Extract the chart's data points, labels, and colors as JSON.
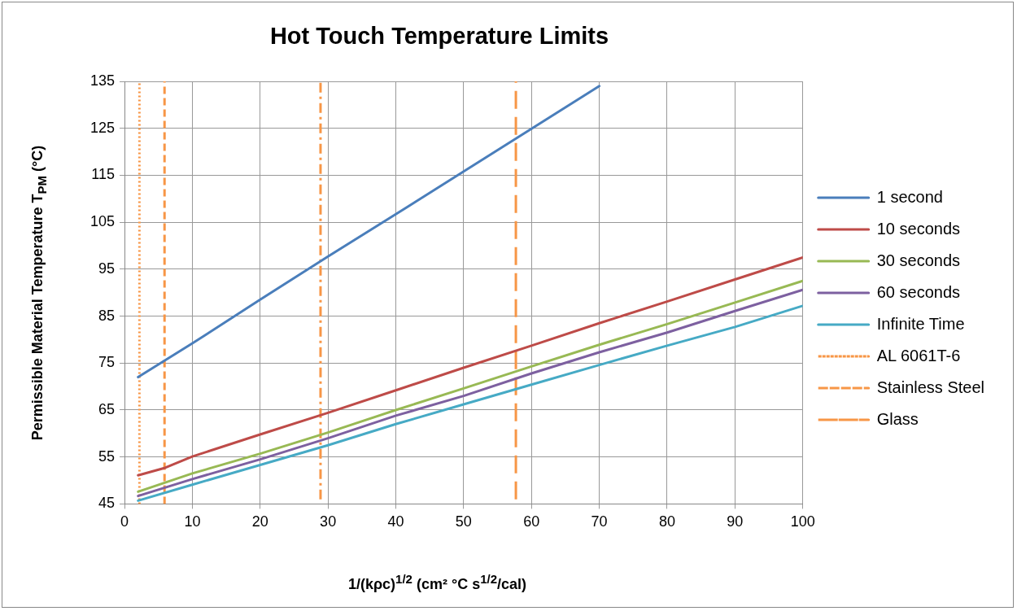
{
  "chart_data": {
    "type": "line",
    "title": "Hot Touch Temperature Limits",
    "xlabel": "1/(kρc)$^{1/2}$ (cm² °C s$^{1/2}$/cal)",
    "ylabel": "Permissible Material Temperature T$_{PM}$ (°C)",
    "xlim": [
      0,
      100
    ],
    "xticks": [
      0,
      10,
      20,
      30,
      40,
      50,
      60,
      70,
      80,
      90,
      100
    ],
    "ylim": [
      45,
      135
    ],
    "yticks": [
      45,
      55,
      65,
      75,
      85,
      95,
      105,
      115,
      125,
      135
    ],
    "grid": true,
    "legend": "right",
    "marker": "none",
    "line_style": "solid",
    "series": [
      {
        "name": "1 second",
        "color": "#4a7ebb",
        "x": [
          2,
          10,
          20,
          30,
          40,
          50,
          60,
          70
        ],
        "values": [
          72.0,
          79.2,
          88.5,
          97.7,
          106.7,
          115.8,
          124.9,
          134
        ]
      },
      {
        "name": "10 seconds",
        "color": "#be4b48",
        "x": [
          2,
          6,
          10,
          20,
          30,
          40,
          50,
          60,
          70,
          80,
          90,
          100
        ],
        "values": [
          51.1,
          52.7,
          55.1,
          59.8,
          64.4,
          69.2,
          74.0,
          78.7,
          83.5,
          88.1,
          92.8,
          97.5
        ]
      },
      {
        "name": "30 seconds",
        "color": "#98b954",
        "x": [
          2,
          10,
          20,
          30,
          40,
          50,
          60,
          70,
          80,
          90,
          100
        ],
        "values": [
          47.6,
          51.5,
          55.7,
          60.2,
          65.0,
          69.6,
          74.3,
          78.9,
          83.3,
          87.9,
          92.5
        ]
      },
      {
        "name": "60 seconds",
        "color": "#7d60a0",
        "x": [
          2,
          10,
          20,
          30,
          40,
          50,
          60,
          70,
          80,
          90,
          100
        ],
        "values": [
          46.7,
          50.3,
          54.5,
          59.0,
          63.8,
          68.0,
          72.8,
          77.3,
          81.5,
          86.1,
          90.6
        ]
      },
      {
        "name": "Infinite Time",
        "color": "#46aac5",
        "x": [
          2,
          10,
          20,
          30,
          40,
          50,
          60,
          70,
          80,
          90,
          100
        ],
        "values": [
          45.7,
          49.1,
          53.3,
          57.5,
          62.0,
          66.2,
          70.4,
          74.6,
          78.7,
          82.7,
          87.2
        ]
      },
      {
        "name": "AL 6061T-6",
        "color": "#f79646",
        "line_style": "dotted",
        "x": [
          2.2,
          2.2
        ],
        "values": [
          45,
          135
        ]
      },
      {
        "name": "Stainless Steel",
        "color": "#f79646",
        "line_style": "dashed",
        "x": [
          5.9,
          5.9
        ],
        "values": [
          45,
          135
        ]
      },
      {
        "name": "Glass",
        "color": "#f79646",
        "line_style": "dashdot",
        "x": [
          28.9,
          28.9
        ],
        "values": [
          46,
          135
        ]
      },
      {
        "color": "#f79646",
        "line_style": "longdash",
        "x": [
          57.7,
          57.7
        ],
        "values": [
          46,
          135
        ]
      }
    ]
  }
}
